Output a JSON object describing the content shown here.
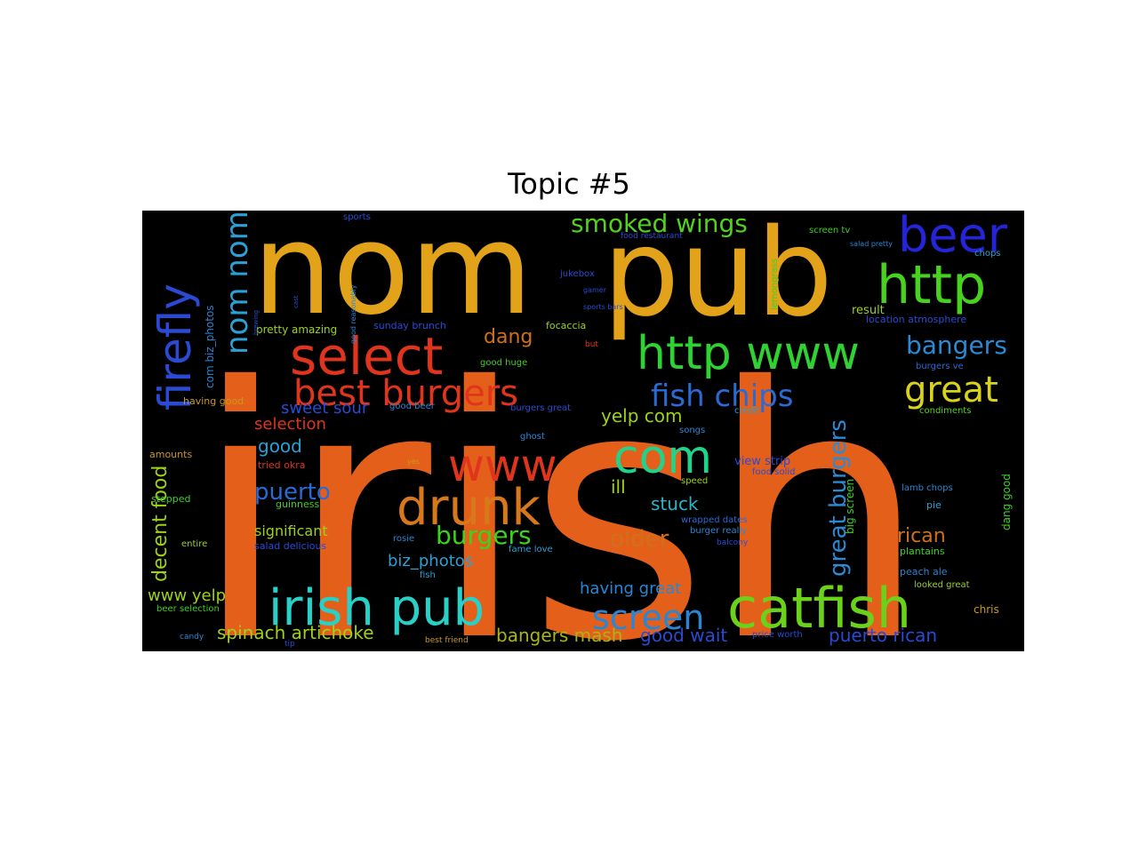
{
  "chart_data": {
    "type": "wordcloud",
    "title": "Topic #5",
    "background": "#000000",
    "words": [
      {
        "text": "irish",
        "weight": 100,
        "color": "#e4601a"
      },
      {
        "text": "nom",
        "weight": 44,
        "color": "#e2a31a"
      },
      {
        "text": "pub",
        "weight": 42,
        "color": "#e2a31a"
      },
      {
        "text": "select",
        "weight": 12,
        "color": "#e0341c"
      },
      {
        "text": "best burgers",
        "weight": 10,
        "color": "#e0341c"
      },
      {
        "text": "http",
        "weight": 12,
        "color": "#46d21e"
      },
      {
        "text": "http www",
        "weight": 11,
        "color": "#2fd232"
      },
      {
        "text": "beer",
        "weight": 11,
        "color": "#2424d8"
      },
      {
        "text": "catfish",
        "weight": 14,
        "color": "#6ad21a"
      },
      {
        "text": "irish pub",
        "weight": 12,
        "color": "#28d0c8"
      },
      {
        "text": "drunk",
        "weight": 12,
        "color": "#d7781a"
      },
      {
        "text": "www",
        "weight": 11,
        "color": "#e0341c"
      },
      {
        "text": "com",
        "weight": 11,
        "color": "#20d28a"
      },
      {
        "text": "firefly",
        "weight": 11,
        "color": "#2a4ad4"
      },
      {
        "text": "screen",
        "weight": 9,
        "color": "#2a86d4"
      },
      {
        "text": "great",
        "weight": 9,
        "color": "#d8d21a"
      },
      {
        "text": "nom nom",
        "weight": 8,
        "color": "#2aa0d4"
      },
      {
        "text": "fish chips",
        "weight": 8,
        "color": "#2a6ad4"
      },
      {
        "text": "great burgers",
        "weight": 7,
        "color": "#2a8ad4"
      },
      {
        "text": "smoked wings",
        "weight": 6,
        "color": "#52d21e"
      },
      {
        "text": "bangers",
        "weight": 6,
        "color": "#2a8ad4"
      },
      {
        "text": "burgers",
        "weight": 6,
        "color": "#3cd21e"
      },
      {
        "text": "puerto",
        "weight": 6,
        "color": "#2a6ad4"
      },
      {
        "text": "older",
        "weight": 6,
        "color": "#d0701a"
      },
      {
        "text": "decent food",
        "weight": 5,
        "color": "#9ed21a"
      },
      {
        "text": "dang",
        "weight": 5,
        "color": "#d0701a"
      },
      {
        "text": "yelp com",
        "weight": 5,
        "color": "#9ed21a"
      },
      {
        "text": "rican",
        "weight": 5,
        "color": "#d0701a"
      },
      {
        "text": "bangers mash",
        "weight": 5,
        "color": "#a8b41a"
      },
      {
        "text": "puerto rican",
        "weight": 5,
        "color": "#2a4ad4"
      },
      {
        "text": "good wait",
        "weight": 5,
        "color": "#2a4ad4"
      },
      {
        "text": "spinach artichoke",
        "weight": 5,
        "color": "#9ed21a"
      },
      {
        "text": "having great",
        "weight": 5,
        "color": "#2a86d4"
      },
      {
        "text": "biz_photos",
        "weight": 5,
        "color": "#2aa0d4"
      },
      {
        "text": "good",
        "weight": 5,
        "color": "#2aa0d4"
      },
      {
        "text": "stuck",
        "weight": 5,
        "color": "#2ab4c8"
      },
      {
        "text": "ill",
        "weight": 5,
        "color": "#9ed21a"
      },
      {
        "text": "www yelp",
        "weight": 4,
        "color": "#9ed21a"
      },
      {
        "text": "selection",
        "weight": 4,
        "color": "#e0341c"
      },
      {
        "text": "sweet sour",
        "weight": 4,
        "color": "#2a4ad4"
      },
      {
        "text": "significant",
        "weight": 4,
        "color": "#9ed21a"
      },
      {
        "text": "chris",
        "weight": 3,
        "color": "#c89a1a"
      },
      {
        "text": "view strip",
        "weight": 3,
        "color": "#2a4ad4"
      },
      {
        "text": "result",
        "weight": 3,
        "color": "#9ed21a"
      },
      {
        "text": "location atmosphere",
        "weight": 2,
        "color": "#2a4ad4"
      },
      {
        "text": "burgers ve",
        "weight": 2,
        "color": "#2a6ad4"
      },
      {
        "text": "condiments",
        "weight": 2,
        "color": "#52d21e"
      },
      {
        "text": "lamb chops",
        "weight": 2,
        "color": "#2a86d4"
      },
      {
        "text": "pie",
        "weight": 2,
        "color": "#2aa0d4"
      },
      {
        "text": "plantains",
        "weight": 2,
        "color": "#3cd21e"
      },
      {
        "text": "peach ale",
        "weight": 2,
        "color": "#2a86d4"
      },
      {
        "text": "looked great",
        "weight": 2,
        "color": "#9ed21a"
      },
      {
        "text": "dang good",
        "weight": 2,
        "color": "#3cd21e"
      },
      {
        "text": "big screen",
        "weight": 2,
        "color": "#3cd21e"
      },
      {
        "text": "pretty amazing",
        "weight": 2,
        "color": "#9ed21a"
      },
      {
        "text": "sunday brunch",
        "weight": 2,
        "color": "#2a4ad4"
      },
      {
        "text": "focaccia",
        "weight": 2,
        "color": "#9ed21a"
      },
      {
        "text": "good huge",
        "weight": 2,
        "color": "#3cd21e"
      },
      {
        "text": "good beer",
        "weight": 2,
        "color": "#2a86d4"
      },
      {
        "text": "burgers great",
        "weight": 2,
        "color": "#2a4ad4"
      },
      {
        "text": "songs",
        "weight": 2,
        "color": "#2a86d4"
      },
      {
        "text": "credit",
        "weight": 2,
        "color": "#2aa0d4"
      },
      {
        "text": "ghost",
        "weight": 2,
        "color": "#2a86d4"
      },
      {
        "text": "food solid",
        "weight": 2,
        "color": "#2a4ad4"
      },
      {
        "text": "speed",
        "weight": 2,
        "color": "#9ed21a"
      },
      {
        "text": "wrapped dates",
        "weight": 2,
        "color": "#2a6ad4"
      },
      {
        "text": "burger really",
        "weight": 2,
        "color": "#2a86d4"
      },
      {
        "text": "balcony",
        "weight": 2,
        "color": "#2a4ad4"
      },
      {
        "text": "price worth",
        "weight": 2,
        "color": "#2a4ad4"
      },
      {
        "text": "fame love",
        "weight": 2,
        "color": "#2aa0d4"
      },
      {
        "text": "fish",
        "weight": 2,
        "color": "#2aa0d4"
      },
      {
        "text": "rosie",
        "weight": 2,
        "color": "#2a86d4"
      },
      {
        "text": "best friend",
        "weight": 1,
        "color": "#c89a1a"
      },
      {
        "text": "tip",
        "weight": 1,
        "color": "#2a4ad4"
      },
      {
        "text": "candy",
        "weight": 1,
        "color": "#2a86d4"
      },
      {
        "text": "beer selection",
        "weight": 1,
        "color": "#3cd21e"
      },
      {
        "text": "entire",
        "weight": 1,
        "color": "#9ed21a"
      },
      {
        "text": "stepped",
        "weight": 2,
        "color": "#3cd21e"
      },
      {
        "text": "amounts",
        "weight": 1,
        "color": "#c89a1a"
      },
      {
        "text": "having good",
        "weight": 2,
        "color": "#c89a1a"
      },
      {
        "text": "com biz_photos",
        "weight": 2,
        "color": "#2a86d4"
      },
      {
        "text": "guinness",
        "weight": 2,
        "color": "#3cd21e"
      },
      {
        "text": "tried okra",
        "weight": 2,
        "color": "#e0341c"
      },
      {
        "text": "salad delicious",
        "weight": 2,
        "color": "#2a4ad4"
      },
      {
        "text": "jukebox",
        "weight": 2,
        "color": "#2a4ad4"
      },
      {
        "text": "food restaurant",
        "weight": 2,
        "color": "#2a4ad4"
      },
      {
        "text": "screen tv",
        "weight": 2,
        "color": "#3cd21e"
      },
      {
        "text": "salad pretty",
        "weight": 1,
        "color": "#2a86d4"
      },
      {
        "text": "chops",
        "weight": 2,
        "color": "#2aa0d4"
      },
      {
        "text": "lemongrass",
        "weight": 2,
        "color": "#3cd21e"
      },
      {
        "text": "sports bars",
        "weight": 1,
        "color": "#2a4ad4"
      },
      {
        "text": "sports",
        "weight": 2,
        "color": "#2a4ad4"
      },
      {
        "text": "good reasonably",
        "weight": 1,
        "color": "#2a86d4"
      },
      {
        "text": "gamer",
        "weight": 1,
        "color": "#2a4ad4"
      },
      {
        "text": "but",
        "weight": 1,
        "color": "#e0341c"
      },
      {
        "text": "yes",
        "weight": 1,
        "color": "#c89a1a"
      },
      {
        "text": "cast",
        "weight": 1,
        "color": "#2a4ad4"
      },
      {
        "text": "brewing",
        "weight": 1,
        "color": "#2a4ad4"
      }
    ]
  }
}
